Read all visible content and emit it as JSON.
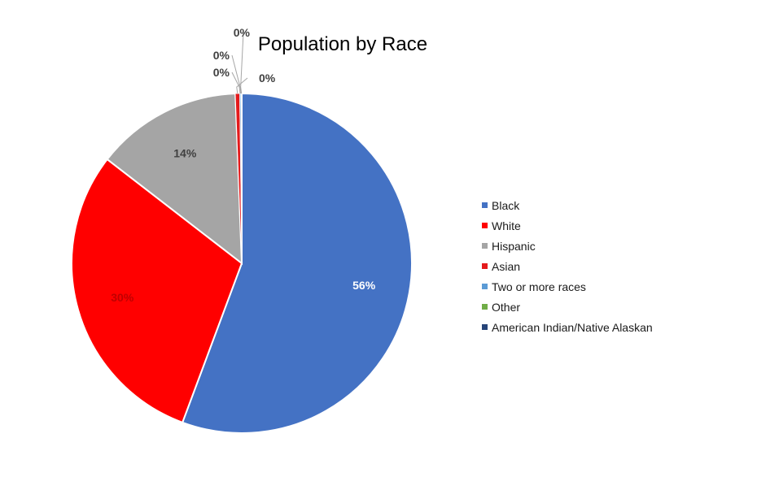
{
  "chart_data": {
    "type": "pie",
    "title": "Population by Race",
    "categories": [
      "Black",
      "White",
      "Hispanic",
      "Asian",
      "Two or more races",
      "Other",
      "American Indian/Native Alaskan"
    ],
    "values": [
      56,
      30,
      14,
      0.4,
      0.1,
      0.05,
      0.05
    ],
    "data_labels": [
      "56%",
      "30%",
      "14%",
      "0%",
      "0%",
      "0%",
      "0%"
    ],
    "colors": [
      "#4472C4",
      "#FF0000",
      "#A5A5A5",
      "#E41A1C",
      "#5B9BD5",
      "#70AD47",
      "#264478"
    ],
    "legend_position": "right"
  }
}
